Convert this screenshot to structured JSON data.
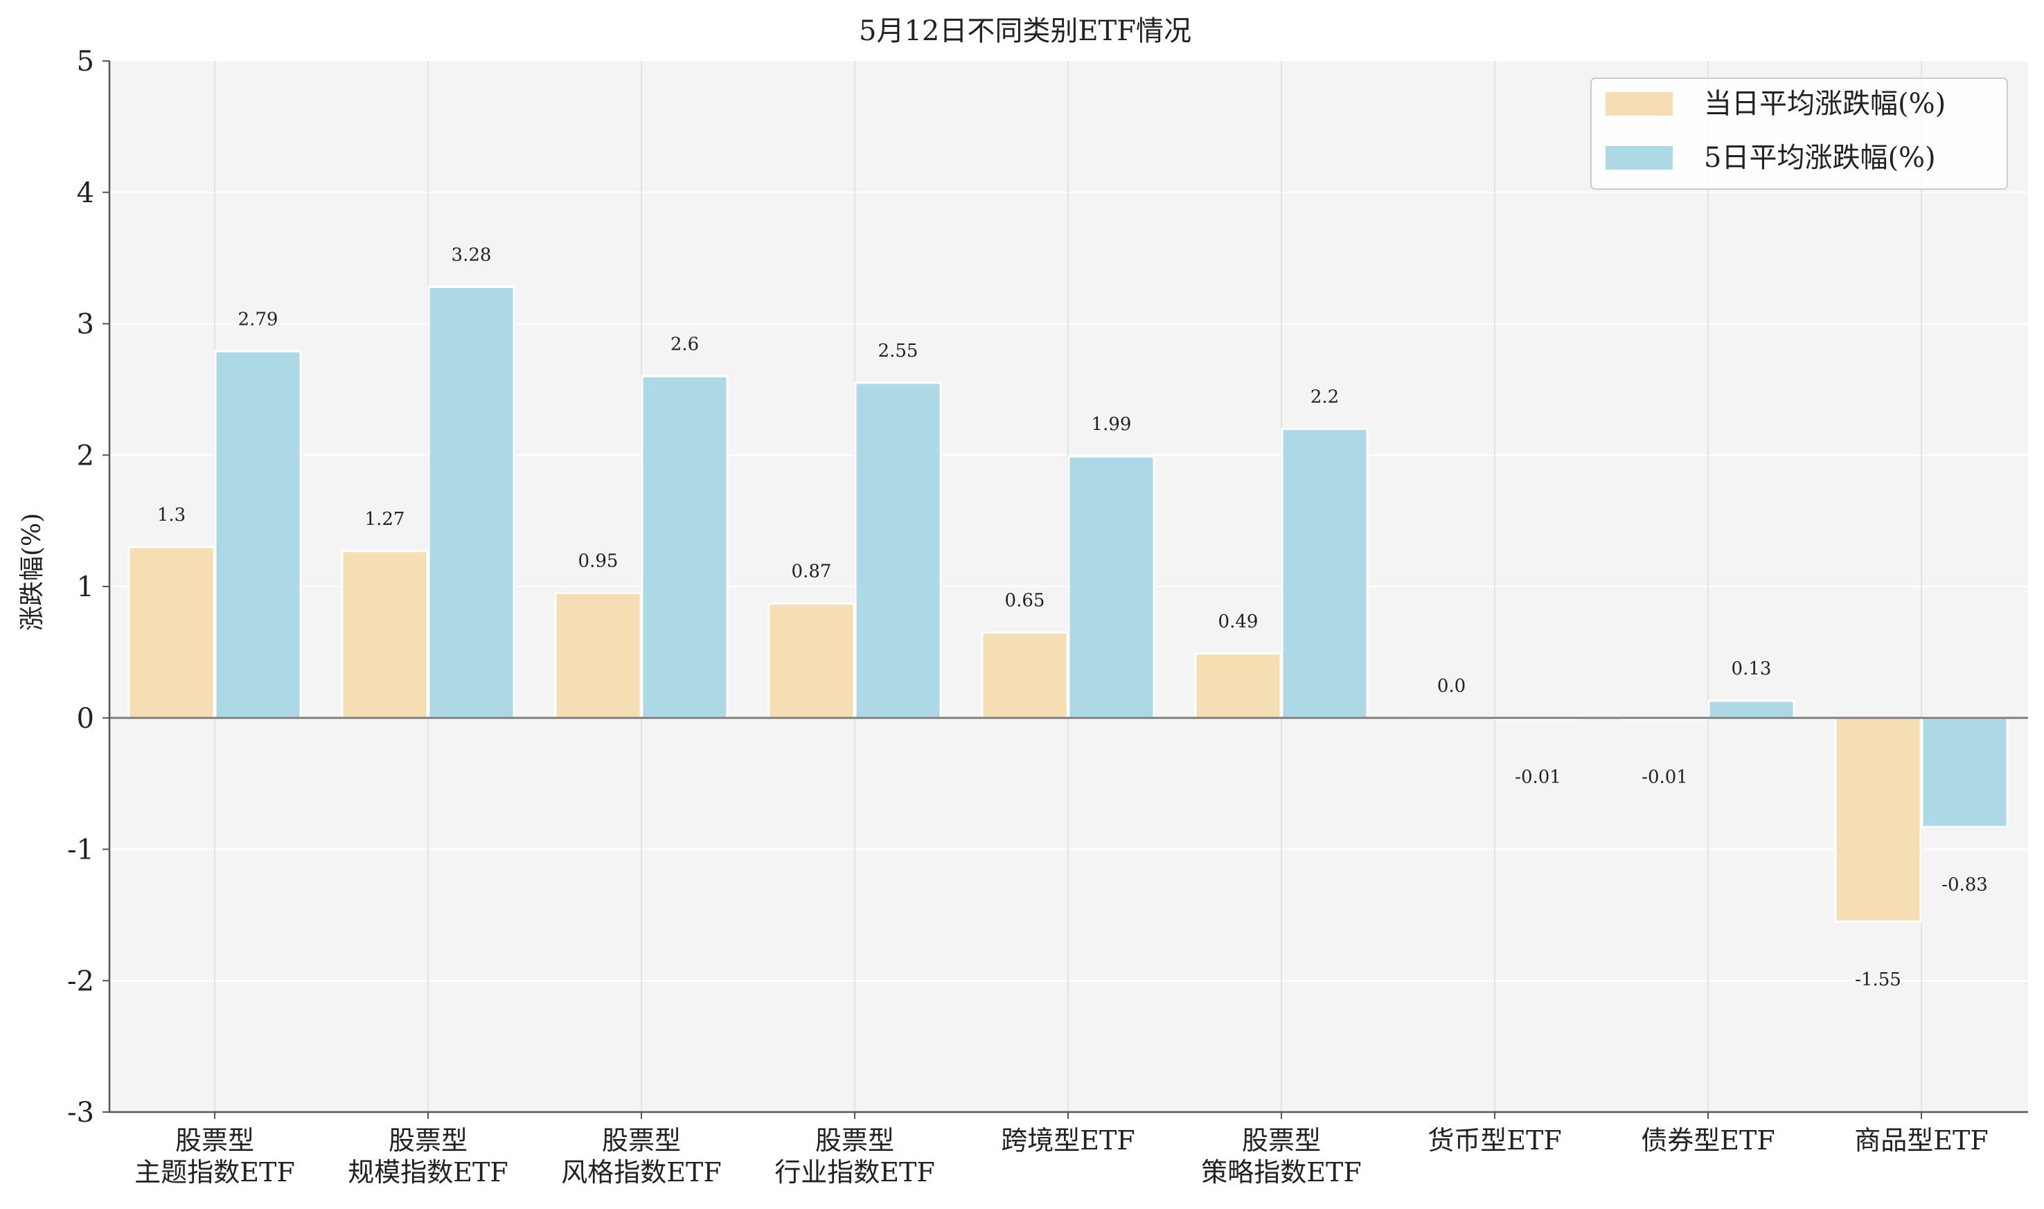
{
  "chart_data": {
    "type": "bar",
    "title": "5月12日不同类别ETF情况",
    "xlabel": "",
    "ylabel": "涨跌幅(%)",
    "ylim": [
      -3,
      5
    ],
    "yticks": [
      -3,
      -2,
      -1,
      0,
      1,
      2,
      3,
      4,
      5
    ],
    "grid": true,
    "legend_position": "top-right",
    "categories": [
      [
        "股票型",
        "主题指数ETF"
      ],
      [
        "股票型",
        "规模指数ETF"
      ],
      [
        "股票型",
        "风格指数ETF"
      ],
      [
        "股票型",
        "行业指数ETF"
      ],
      [
        "跨境型ETF"
      ],
      [
        "股票型",
        "策略指数ETF"
      ],
      [
        "货币型ETF"
      ],
      [
        "债券型ETF"
      ],
      [
        "商品型ETF"
      ]
    ],
    "series": [
      {
        "name": "当日平均涨跌幅(%)",
        "color": "#f5deb3",
        "values": [
          1.3,
          1.27,
          0.95,
          0.87,
          0.65,
          0.49,
          0.0,
          -0.01,
          -1.55
        ],
        "labels": [
          "1.3",
          "1.27",
          "0.95",
          "0.87",
          "0.65",
          "0.49",
          "0.0",
          "-0.01",
          "-1.55"
        ]
      },
      {
        "name": "5日平均涨跌幅(%)",
        "color": "#add8e6",
        "values": [
          2.79,
          3.28,
          2.6,
          2.55,
          1.99,
          2.2,
          -0.01,
          0.13,
          -0.83
        ],
        "labels": [
          "2.79",
          "3.28",
          "2.6",
          "2.55",
          "1.99",
          "2.2",
          "-0.01",
          "0.13",
          "-0.83"
        ]
      }
    ]
  }
}
